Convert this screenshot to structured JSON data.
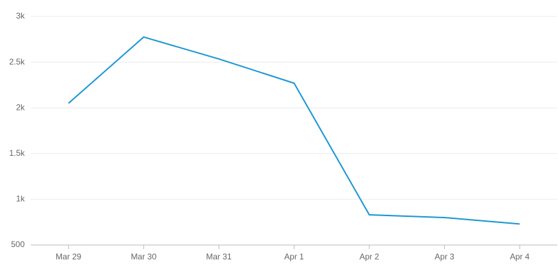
{
  "chart_data": {
    "type": "line",
    "categories": [
      "Mar 29",
      "Mar 30",
      "Mar 31",
      "Apr 1",
      "Apr 2",
      "Apr 3",
      "Apr 4"
    ],
    "values": [
      2050,
      2775,
      2535,
      2270,
      830,
      800,
      730
    ],
    "color": "#1a96d4",
    "ylim": [
      500,
      3000
    ],
    "yticks": [
      500,
      {
        "value": 1000,
        "label": "1k"
      },
      {
        "value": 1500,
        "label": "1.5k"
      },
      {
        "value": 2000,
        "label": "2k"
      },
      {
        "value": 2500,
        "label": "2.5k"
      },
      {
        "value": 3000,
        "label": "3k"
      }
    ],
    "grid": true
  }
}
